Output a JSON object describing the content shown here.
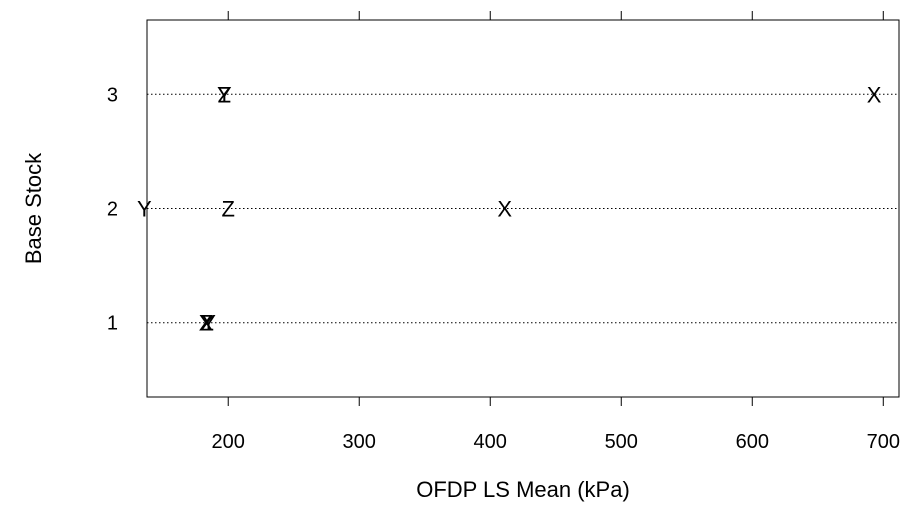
{
  "chart_data": {
    "type": "scatter",
    "title": "",
    "xlabel": "OFDP LS Mean (kPa)",
    "ylabel": "Base Stock",
    "xlim": [
      138,
      712
    ],
    "ylim": [
      0.35,
      3.65
    ],
    "x_ticks": [
      "200",
      "300",
      "400",
      "500",
      "600",
      "700"
    ],
    "x_tick_values": [
      200,
      300,
      400,
      500,
      600,
      700
    ],
    "y_ticks": [
      "1",
      "2",
      "3"
    ],
    "y_tick_values": [
      1,
      2,
      3
    ],
    "grid": "dotted horizontal reference lines at y = 1, 2, 3",
    "points": [
      {
        "label": "X",
        "x": 693,
        "y": 3
      },
      {
        "label": "Y",
        "x": 197,
        "y": 3
      },
      {
        "label": "Z",
        "x": 197,
        "y": 3
      },
      {
        "label": "Y",
        "x": 136,
        "y": 2
      },
      {
        "label": "Z",
        "x": 200,
        "y": 2
      },
      {
        "label": "X",
        "x": 411,
        "y": 2
      },
      {
        "label": "X",
        "x": 183,
        "y": 1
      },
      {
        "label": "Y",
        "x": 185,
        "y": 1
      },
      {
        "label": "Z",
        "x": 184,
        "y": 1
      }
    ]
  }
}
